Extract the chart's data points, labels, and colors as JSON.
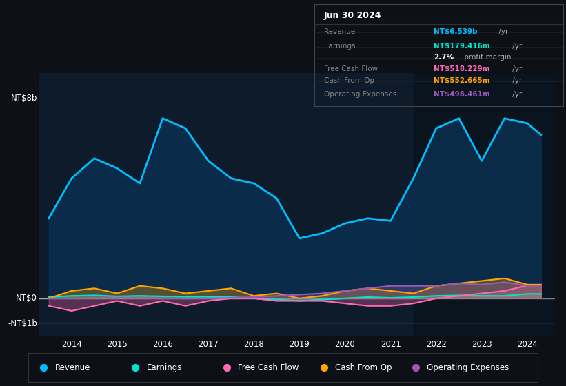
{
  "bg_color": "#0d1117",
  "plot_bg_color": "#0d1b2a",
  "grid_color": "#1e3a5f",
  "zero_line_color": "#aaaaaa",
  "title_date": "Jun 30 2024",
  "ylabel_top": "NT$8b",
  "ylabel_zero": "NT$0",
  "ylabel_neg": "-NT$1b",
  "xticklabels": [
    "2014",
    "2015",
    "2016",
    "2017",
    "2018",
    "2019",
    "2020",
    "2021",
    "2022",
    "2023",
    "2024"
  ],
  "legend_items": [
    {
      "label": "Revenue",
      "color": "#00bfff"
    },
    {
      "label": "Earnings",
      "color": "#00e5cc"
    },
    {
      "label": "Free Cash Flow",
      "color": "#ff69b4"
    },
    {
      "label": "Cash From Op",
      "color": "#ffa500"
    },
    {
      "label": "Operating Expenses",
      "color": "#9b59b6"
    }
  ],
  "revenue_color": "#00bfff",
  "earnings_color": "#00e5cc",
  "fcf_color": "#ff69b4",
  "cashfromop_color": "#ffa500",
  "opex_color": "#9b59b6",
  "revenue_x": [
    2013.5,
    2014.0,
    2014.5,
    2015.0,
    2015.5,
    2016.0,
    2016.5,
    2017.0,
    2017.5,
    2018.0,
    2018.5,
    2019.0,
    2019.5,
    2020.0,
    2020.5,
    2021.0,
    2021.5,
    2022.0,
    2022.5,
    2023.0,
    2023.5,
    2024.0,
    2024.3
  ],
  "revenue_y": [
    3.2,
    4.8,
    5.6,
    5.2,
    4.6,
    7.2,
    6.8,
    5.5,
    4.8,
    4.6,
    4.0,
    2.4,
    2.6,
    3.0,
    3.2,
    3.1,
    4.8,
    6.8,
    7.2,
    5.5,
    7.2,
    7.0,
    6.54
  ],
  "earnings_x": [
    2013.5,
    2014.0,
    2014.5,
    2015.0,
    2015.5,
    2016.0,
    2016.5,
    2017.0,
    2017.5,
    2018.0,
    2018.5,
    2019.0,
    2019.5,
    2020.0,
    2020.5,
    2021.0,
    2021.5,
    2022.0,
    2022.5,
    2023.0,
    2023.5,
    2024.0,
    2024.3
  ],
  "earnings_y": [
    0.05,
    0.1,
    0.12,
    0.08,
    0.1,
    0.08,
    0.07,
    0.06,
    0.05,
    0.0,
    -0.05,
    -0.1,
    -0.05,
    0.0,
    0.05,
    0.02,
    0.05,
    0.1,
    0.12,
    0.1,
    0.1,
    0.18,
    0.18
  ],
  "fcf_x": [
    2013.5,
    2014.0,
    2014.5,
    2015.0,
    2015.5,
    2016.0,
    2016.5,
    2017.0,
    2017.5,
    2018.0,
    2018.5,
    2019.0,
    2019.5,
    2020.0,
    2020.5,
    2021.0,
    2021.5,
    2022.0,
    2022.5,
    2023.0,
    2023.5,
    2024.0,
    2024.3
  ],
  "fcf_y": [
    -0.3,
    -0.5,
    -0.3,
    -0.1,
    -0.3,
    -0.1,
    -0.3,
    -0.1,
    0.0,
    0.0,
    -0.1,
    -0.1,
    -0.1,
    -0.2,
    -0.3,
    -0.3,
    -0.2,
    0.0,
    0.1,
    0.2,
    0.3,
    0.52,
    0.52
  ],
  "cashfromop_x": [
    2013.5,
    2014.0,
    2014.5,
    2015.0,
    2015.5,
    2016.0,
    2016.5,
    2017.0,
    2017.5,
    2018.0,
    2018.5,
    2019.0,
    2019.5,
    2020.0,
    2020.5,
    2021.0,
    2021.5,
    2022.0,
    2022.5,
    2023.0,
    2023.5,
    2024.0,
    2024.3
  ],
  "cashfromop_y": [
    0.0,
    0.3,
    0.4,
    0.2,
    0.5,
    0.4,
    0.2,
    0.3,
    0.4,
    0.1,
    0.2,
    0.0,
    0.1,
    0.3,
    0.4,
    0.3,
    0.2,
    0.5,
    0.6,
    0.7,
    0.8,
    0.55,
    0.55
  ],
  "opex_x": [
    2013.5,
    2014.0,
    2014.5,
    2015.0,
    2015.5,
    2016.0,
    2016.5,
    2017.0,
    2017.5,
    2018.0,
    2018.5,
    2019.0,
    2019.5,
    2020.0,
    2020.5,
    2021.0,
    2021.5,
    2022.0,
    2022.5,
    2023.0,
    2023.5,
    2024.0,
    2024.3
  ],
  "opex_y": [
    0.0,
    0.0,
    0.02,
    0.03,
    0.02,
    0.01,
    -0.01,
    0.0,
    0.02,
    0.05,
    0.1,
    0.15,
    0.2,
    0.3,
    0.4,
    0.5,
    0.5,
    0.5,
    0.6,
    0.55,
    0.65,
    0.5,
    0.5
  ],
  "ylim": [
    -1.5,
    9.0
  ],
  "xlim": [
    2013.3,
    2024.6
  ]
}
